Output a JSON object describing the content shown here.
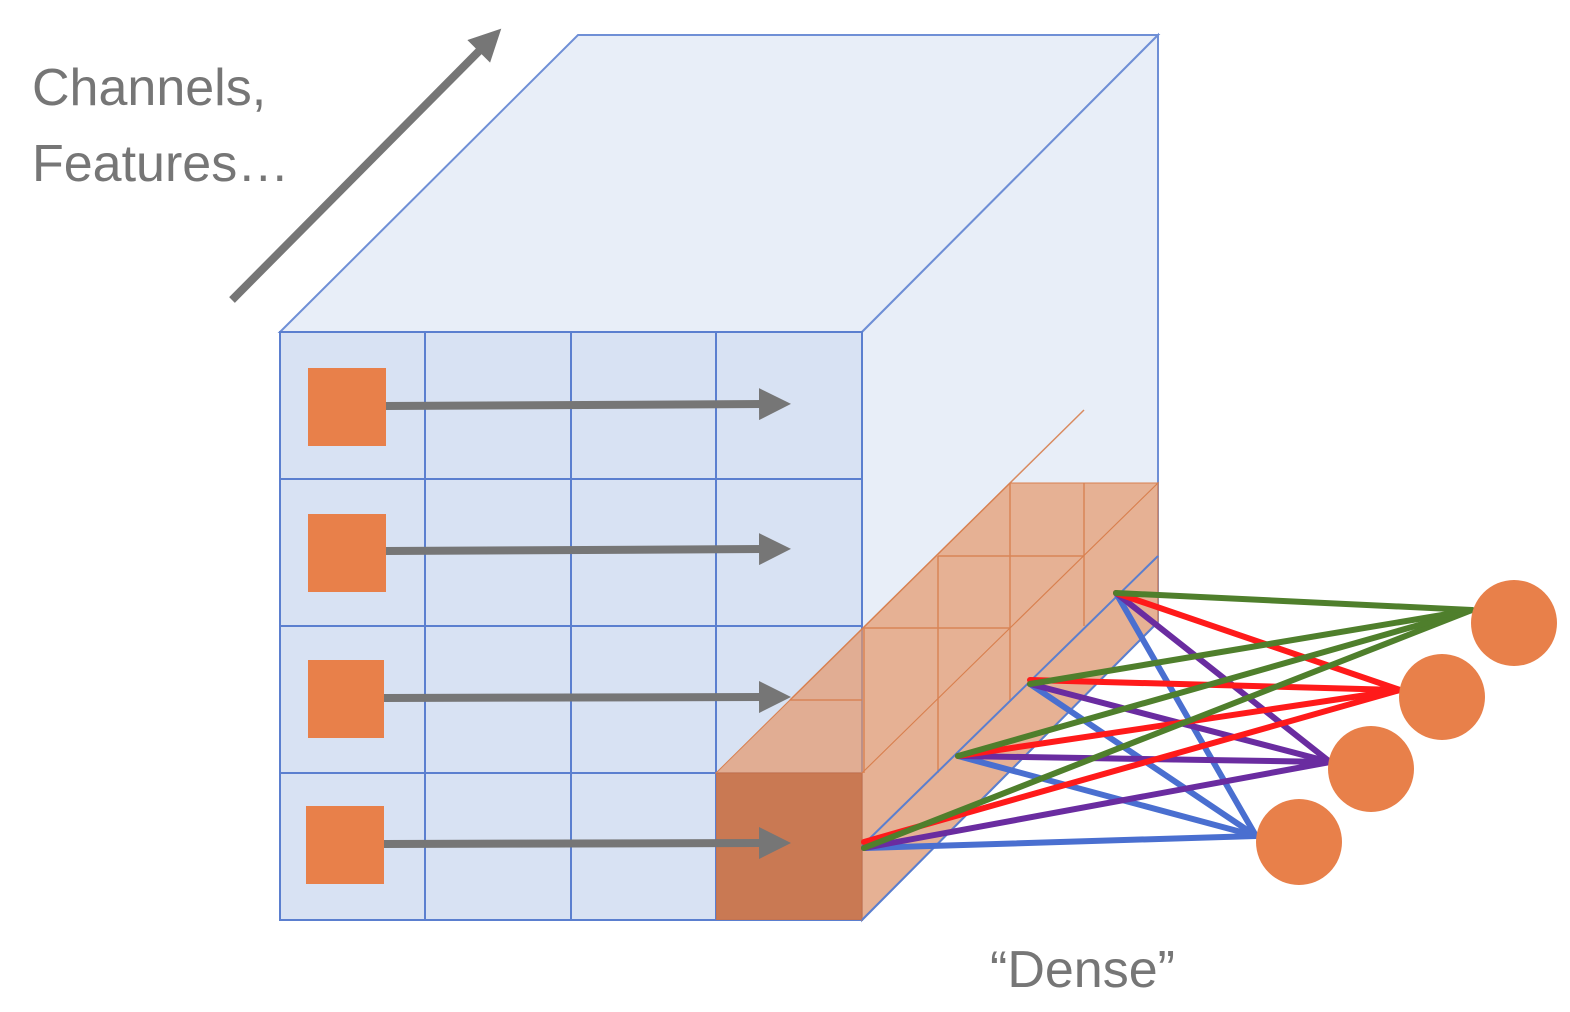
{
  "labels": {
    "channels_line1": "Channels,",
    "channels_line2": "Features…",
    "dense": "“Dense”"
  },
  "colors": {
    "cube_fill": "#e8eef8",
    "front_face_fill": "#d8e2f3",
    "cube_edge": "#6f8fd6",
    "grid_line": "#5b7fcf",
    "orange": "#e8804a",
    "orange_block": "#c8734a",
    "gray_arrow": "#767676",
    "line_green": "#4f7f2c",
    "line_red": "#ff1a1a",
    "line_purple": "#6a2ca0",
    "line_blue": "#4a6fd0",
    "text_gray": "#767676"
  },
  "grid": {
    "rows": 4,
    "columns": 4
  },
  "input_nodes": 4,
  "output_nodes": 4
}
